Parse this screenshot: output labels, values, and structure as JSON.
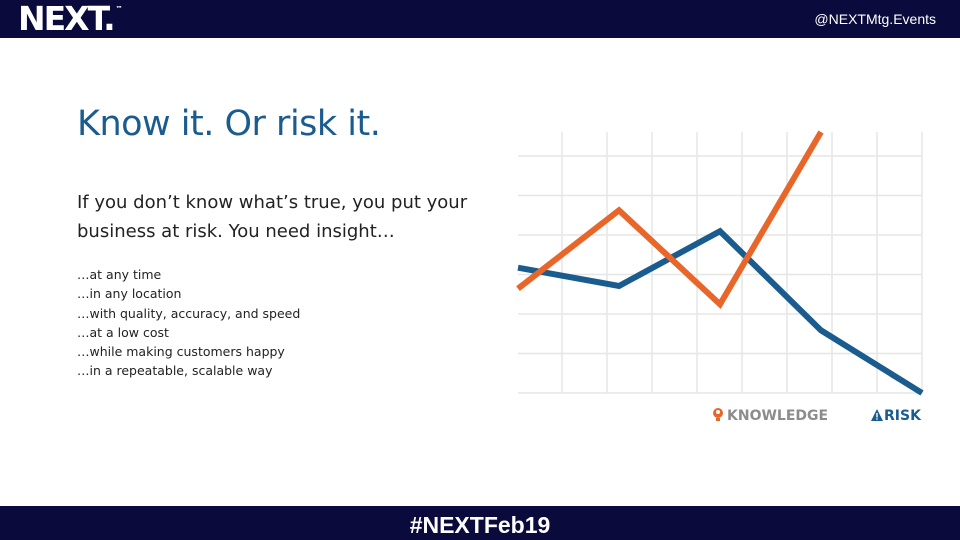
{
  "header": {
    "logo_text": "NEXT.",
    "logo_tm": "™",
    "handle": "@NEXTMtg.Events"
  },
  "main": {
    "title": "Know it. Or risk it.",
    "intro": "If you don’t know what’s true, you put your business at risk. You need insight…",
    "list": [
      "…at any time",
      "…in any location",
      "…with quality, accuracy, and speed",
      "…at a low cost",
      "…while making customers happy",
      "…in a repeatable, scalable way"
    ]
  },
  "chart_data": {
    "type": "line",
    "x": [
      0,
      1,
      2,
      3,
      4
    ],
    "series": [
      {
        "name": "KNOWLEDGE",
        "color": "#1b5c8f",
        "values": [
          48,
          41,
          62,
          24,
          0
        ]
      },
      {
        "name": "RISK",
        "color": "#e8662a",
        "values": [
          40,
          70,
          34,
          100,
          null
        ]
      }
    ],
    "ylim": [
      0,
      100
    ],
    "grid": true,
    "legend_placement": "bottom-right",
    "legend_icons": {
      "KNOWLEDGE": "lightbulb-head-icon",
      "RISK": "warning-triangle-icon"
    }
  },
  "footer": {
    "hashtag": "#NEXTFeb19"
  }
}
